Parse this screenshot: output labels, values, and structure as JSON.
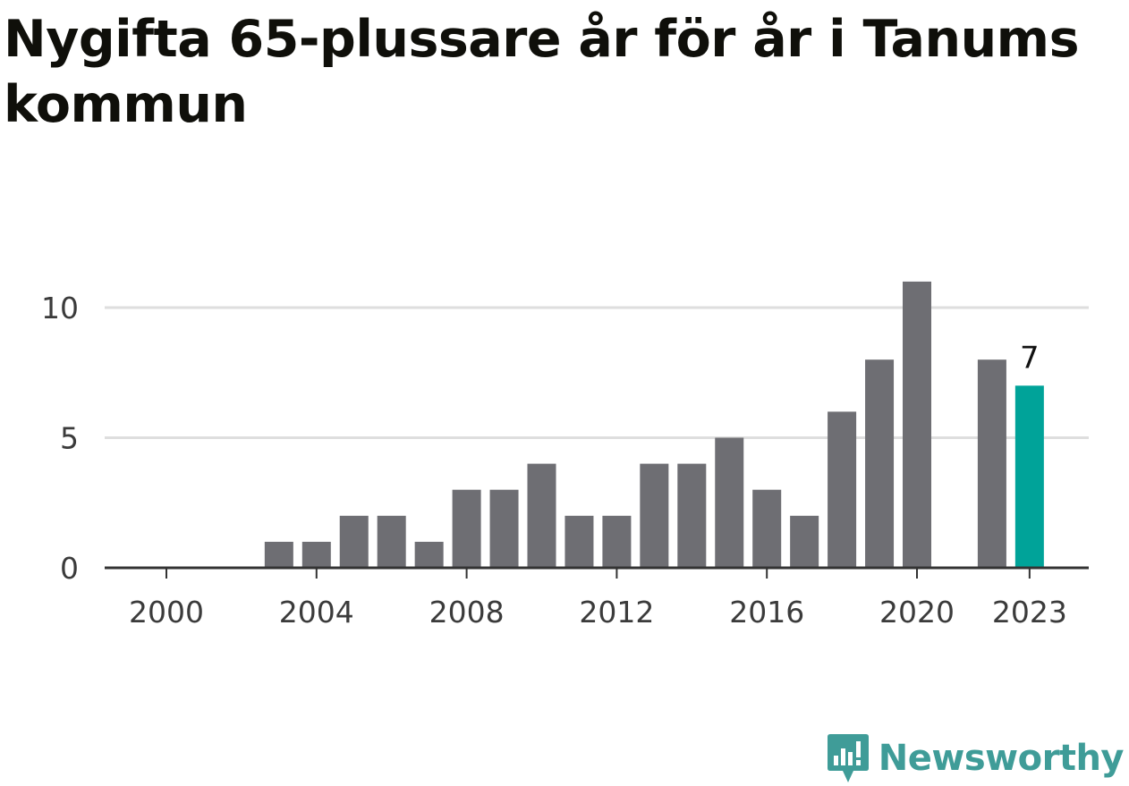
{
  "chart_data": {
    "type": "bar",
    "title": "Nygifta 65-plussare år för år i Tanums kommun",
    "xlabel": "",
    "ylabel": "",
    "x": [
      2000,
      2001,
      2002,
      2003,
      2004,
      2005,
      2006,
      2007,
      2008,
      2009,
      2010,
      2011,
      2012,
      2013,
      2014,
      2015,
      2016,
      2017,
      2018,
      2019,
      2020,
      2021,
      2022,
      2023
    ],
    "values": [
      0,
      0,
      0,
      1,
      1,
      2,
      2,
      1,
      3,
      3,
      4,
      2,
      2,
      4,
      4,
      5,
      3,
      2,
      6,
      8,
      11,
      0,
      8,
      7
    ],
    "x_ticks": [
      "2000",
      "2004",
      "2008",
      "2012",
      "2016",
      "2020",
      "2023"
    ],
    "y_ticks": [
      "0",
      "5",
      "10"
    ],
    "ylim": [
      0,
      11
    ],
    "grid": true,
    "legend": "none",
    "highlight": {
      "x": 2023,
      "label": "7"
    },
    "colors": {
      "bar": "#6e6e73",
      "highlight": "#00a399",
      "grid": "#dedede",
      "axis": "#333333"
    }
  },
  "brand": {
    "name": "Newsworthy",
    "icon": "newsworthy-logo-icon",
    "color": "#3f9c98"
  }
}
